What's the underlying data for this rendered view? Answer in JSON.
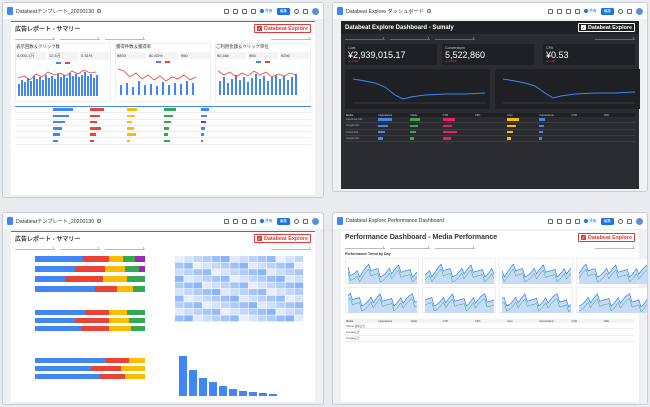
{
  "windows": [
    {
      "tab_title": "Databeatテンプレート_20200130",
      "report_title": "広告レポート - サマリー",
      "brand": "Databeat Explore"
    },
    {
      "tab_title": "Databeat Explore ダッシュボード",
      "report_title": "Databeat Explore Dashboard - Sumaly",
      "brand": "Databeat Explore"
    },
    {
      "tab_title": "Databeatテンプレート_20200130",
      "report_title": "広告レポート - サマリー",
      "brand": "Databeat Explore"
    },
    {
      "tab_title": "Databeat Explore Performance Dashboard",
      "report_title": "Performance Dashboard - Media Performance",
      "brand": "Databeat Explore"
    }
  ],
  "toolbar": {
    "share_label": "共有",
    "edit_label": "編集"
  },
  "w1_kpis": [
    {
      "title": "表示回数＆クリック数",
      "s1": "4,000,1万",
      "s2": "12.5万",
      "s3": "0.31%"
    },
    {
      "title": "獲得件数＆獲得率",
      "s1": "¥893",
      "s2": "80.83%",
      "s3": "¥50"
    },
    {
      "title": "ご利用金額＆クリック単位",
      "s1": "¥2.46k",
      "s2": "¥56",
      "s3": "¥250"
    }
  ],
  "w2_kpis": [
    {
      "label": "Cost",
      "value": "¥2,939,015.17",
      "pct": "▲ -2.4%"
    },
    {
      "label": "Conversions",
      "value": "5,522,860",
      "pct": "▲ -18.4%"
    },
    {
      "label": "CPA",
      "value": "¥0.53",
      "pct": "▲ 2.1%"
    }
  ],
  "w2_table_head": [
    "Media",
    "Impressions",
    "Clicks",
    "CTR",
    "CPC",
    "Cost",
    "Conversions",
    "CVR",
    "CPA"
  ],
  "w2_table_rows": [
    "Facebook Ads",
    "Google Ads",
    "Yahoo Ads",
    "Google Ads"
  ],
  "w4_section": "Performance Trend by Day",
  "w4_table_head": [
    "Media",
    "Impressions",
    "Clicks",
    "CTR",
    "CPC",
    "Cost",
    "Conversions",
    "CVR",
    "CPA"
  ],
  "w4_table_rows": [
    "Yahoo! 検索広告",
    "Google広告",
    "Google広告"
  ],
  "icons": [
    "search-icon",
    "share-icon",
    "edit-icon",
    "avatar"
  ]
}
